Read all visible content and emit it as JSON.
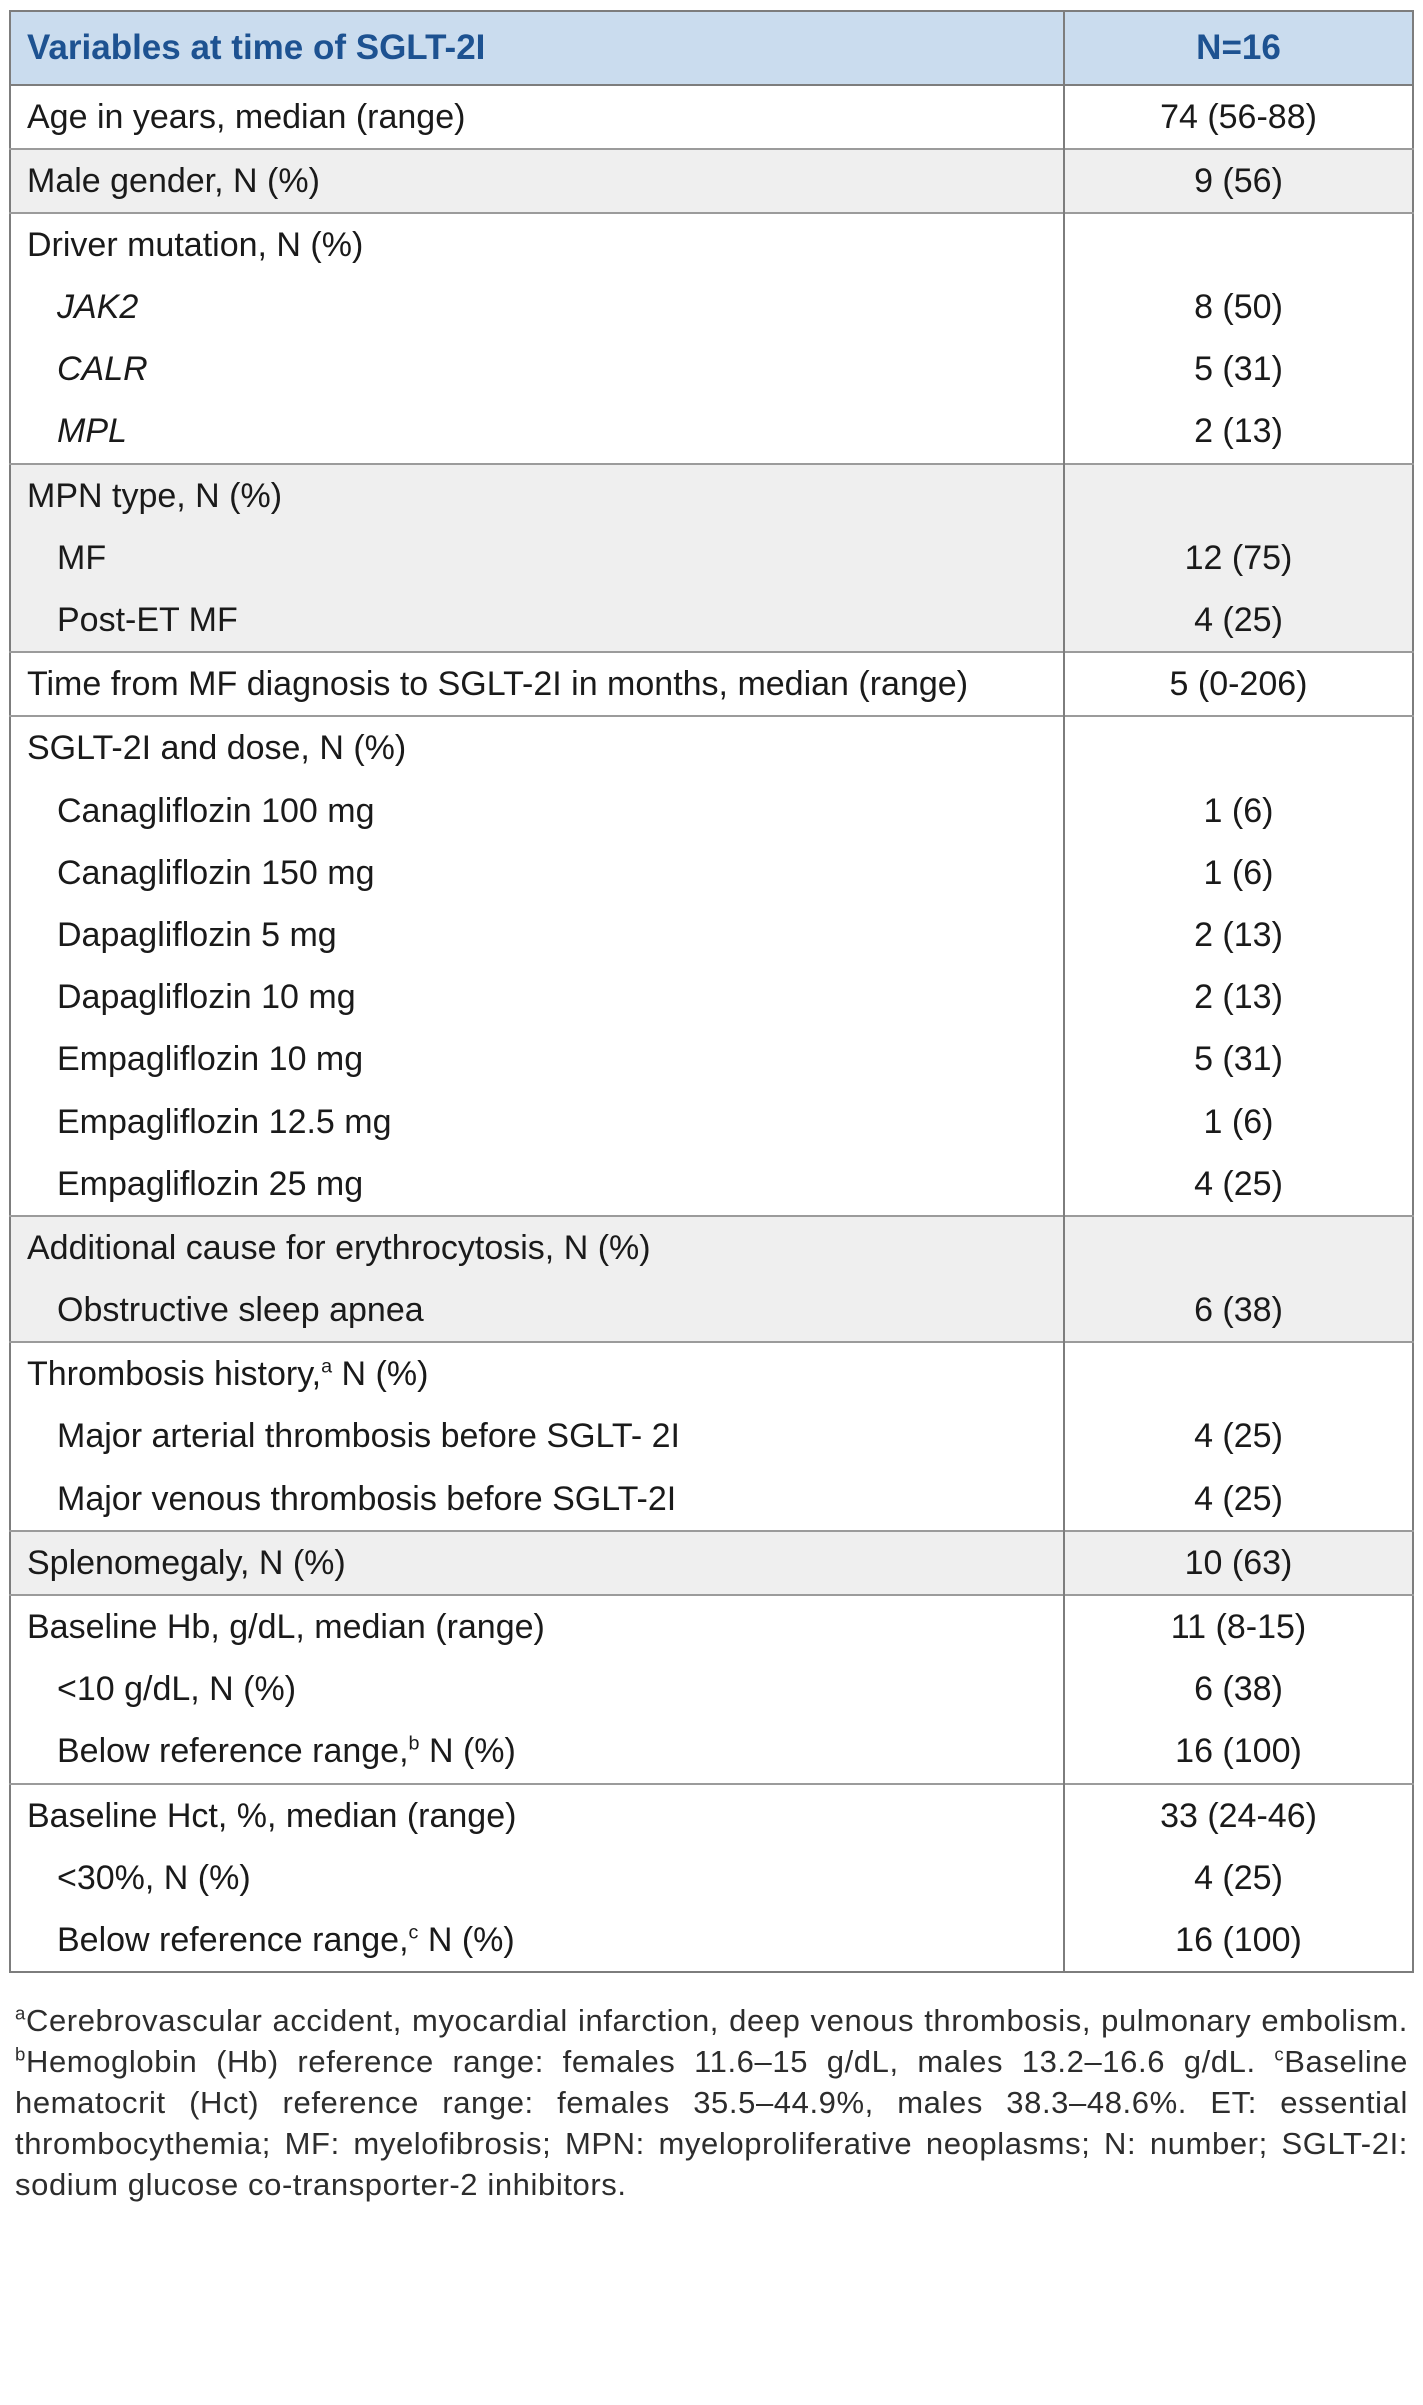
{
  "colors": {
    "header_bg": "#cadcee",
    "header_text": "#1d5291",
    "shaded_row_bg": "#efefef",
    "border": "#7d7d7d",
    "body_text": "#1a1a1a"
  },
  "table": {
    "header": {
      "variables": "Variables at time of SGLT-2I",
      "n": "N=16"
    },
    "sections": [
      {
        "shaded": false,
        "rows": [
          {
            "label": "Age in years, median (range)",
            "value": "74 (56-88)"
          }
        ]
      },
      {
        "shaded": true,
        "rows": [
          {
            "label": "Male gender, N (%)",
            "value": "9 (56)"
          }
        ]
      },
      {
        "shaded": false,
        "rows": [
          {
            "label": "Driver mutation, N (%)",
            "value": ""
          },
          {
            "label": "JAK2",
            "value": "8 (50)",
            "indent": true,
            "italic": true
          },
          {
            "label": "CALR",
            "value": "5 (31)",
            "indent": true,
            "italic": true
          },
          {
            "label": "MPL",
            "value": "2 (13)",
            "indent": true,
            "italic": true
          }
        ]
      },
      {
        "shaded": true,
        "rows": [
          {
            "label": "MPN type, N (%)",
            "value": ""
          },
          {
            "label": "MF",
            "value": "12 (75)",
            "indent": true
          },
          {
            "label": "Post-ET MF",
            "value": "4 (25)",
            "indent": true
          }
        ]
      },
      {
        "shaded": false,
        "rows": [
          {
            "label": "Time from MF diagnosis to SGLT-2I in months, median (range)",
            "value": "5 (0-206)"
          }
        ]
      },
      {
        "shaded": false,
        "rows": [
          {
            "label": "SGLT-2I and dose, N (%)",
            "value": ""
          },
          {
            "label": "Canagliflozin 100 mg",
            "value": "1 (6)",
            "indent": true
          },
          {
            "label": "Canagliflozin 150 mg",
            "value": "1 (6)",
            "indent": true
          },
          {
            "label": "Dapagliflozin 5 mg",
            "value": "2 (13)",
            "indent": true
          },
          {
            "label": "Dapagliflozin 10 mg",
            "value": "2 (13)",
            "indent": true
          },
          {
            "label": "Empagliflozin 10 mg",
            "value": "5 (31)",
            "indent": true
          },
          {
            "label": "Empagliflozin 12.5 mg",
            "value": "1 (6)",
            "indent": true
          },
          {
            "label": "Empagliflozin 25 mg",
            "value": "4 (25)",
            "indent": true
          }
        ]
      },
      {
        "shaded": true,
        "rows": [
          {
            "label": "Additional cause for erythrocytosis, N (%)",
            "value": ""
          },
          {
            "label": "Obstructive sleep apnea",
            "value": "6 (38)",
            "indent": true
          }
        ]
      },
      {
        "shaded": false,
        "rows": [
          {
            "label": "Thrombosis history,",
            "sup": "a",
            "label_after": " N (%)",
            "value": ""
          },
          {
            "label": "Major arterial thrombosis before SGLT- 2I",
            "value": "4 (25)",
            "indent": true
          },
          {
            "label": "Major venous thrombosis before SGLT-2I",
            "value": "4 (25)",
            "indent": true
          }
        ]
      },
      {
        "shaded": true,
        "rows": [
          {
            "label": "Splenomegaly, N (%)",
            "value": "10 (63)"
          }
        ]
      },
      {
        "shaded": false,
        "rows": [
          {
            "label": "Baseline Hb, g/dL, median (range)",
            "value": "11 (8-15)"
          },
          {
            "label": "<10 g/dL, N (%)",
            "value": "6 (38)",
            "indent": true
          },
          {
            "label": "Below reference range,",
            "sup": "b",
            "label_after": " N (%)",
            "value": "16 (100)",
            "indent": true
          }
        ]
      },
      {
        "shaded": false,
        "rows": [
          {
            "label": "Baseline Hct, %, median (range)",
            "value": "33 (24-46)"
          },
          {
            "label": "<30%, N (%)",
            "value": "4 (25)",
            "indent": true
          },
          {
            "label": "Below reference range,",
            "sup": "c",
            "label_after": " N (%)",
            "value": "16 (100)",
            "indent": true
          }
        ]
      }
    ]
  },
  "footnote": {
    "parts": [
      {
        "sup": "a",
        "text": "Cerebrovascular accident, myocardial infarction, deep venous thrombosis, pulmonary embolism. "
      },
      {
        "sup": "b",
        "text": "Hemoglobin (Hb) reference range: females 11.6–15 g/dL, males 13.2–16.6 g/dL. "
      },
      {
        "sup": "c",
        "text": "Baseline hematocrit (Hct) reference range: females 35.5–44.9%, males 38.3–48.6%. ET: essential thrombocythemia; MF: myelofibrosis; MPN: myeloproliferative neoplasms; N: number; SGLT-2I: sodium glucose co-transporter-2 inhibitors."
      }
    ]
  }
}
